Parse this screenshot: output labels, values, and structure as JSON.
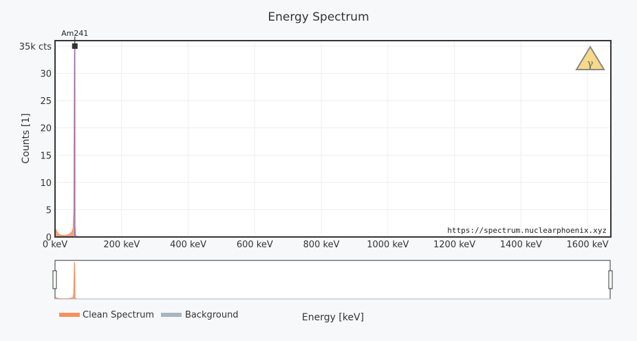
{
  "chart_data": {
    "type": "area",
    "title": "Energy Spectrum",
    "xlabel": "Energy [keV]",
    "ylabel": "Counts [1]",
    "xlim": [
      0,
      1670
    ],
    "ylim": [
      0,
      36000
    ],
    "x_ticks": [
      {
        "value": 0,
        "label": "0 keV"
      },
      {
        "value": 200,
        "label": "200 keV"
      },
      {
        "value": 400,
        "label": "400 keV"
      },
      {
        "value": 600,
        "label": "600 keV"
      },
      {
        "value": 800,
        "label": "800 keV"
      },
      {
        "value": 1000,
        "label": "1000 keV"
      },
      {
        "value": 1200,
        "label": "1200 keV"
      },
      {
        "value": 1400,
        "label": "1400 keV"
      },
      {
        "value": 1600,
        "label": "1600 keV"
      }
    ],
    "y_ticks": [
      {
        "value": 0,
        "label": "0"
      },
      {
        "value": 5000,
        "label": "5"
      },
      {
        "value": 10000,
        "label": "10"
      },
      {
        "value": 15000,
        "label": "15"
      },
      {
        "value": 20000,
        "label": "20"
      },
      {
        "value": 25000,
        "label": "25"
      },
      {
        "value": 30000,
        "label": "30"
      },
      {
        "value": 35000,
        "label": "35k cts"
      }
    ],
    "grid": true,
    "legend_position": "bottom-left",
    "series": [
      {
        "name": "Clean Spectrum",
        "color": "#f7905f",
        "x": [
          0,
          2,
          4,
          6,
          8,
          10,
          14,
          18,
          22,
          26,
          30,
          34,
          38,
          42,
          46,
          50,
          54,
          56,
          58,
          59,
          60,
          62,
          66,
          80,
          200,
          400,
          800,
          1200,
          1670
        ],
        "y": [
          0,
          1400,
          1200,
          900,
          800,
          600,
          450,
          350,
          300,
          280,
          300,
          350,
          400,
          500,
          700,
          900,
          1500,
          5000,
          33000,
          35000,
          2000,
          300,
          50,
          0,
          0,
          0,
          0,
          0,
          0
        ]
      },
      {
        "name": "Background",
        "color": "#aab3c2",
        "x": [
          0,
          1670
        ],
        "y": [
          0,
          0
        ]
      }
    ],
    "annotations": [
      {
        "label": "Am241",
        "x": 59.5,
        "y": 35000
      }
    ]
  },
  "watermark_url": "https://spectrum.nuclearphoenix.xyz",
  "peak_marker": {
    "color": "#6c63c9"
  },
  "logo": {
    "icon": "gamma-warning-icon",
    "symbol": "γ",
    "fill": "#f7d98a",
    "stroke": "#888888"
  }
}
